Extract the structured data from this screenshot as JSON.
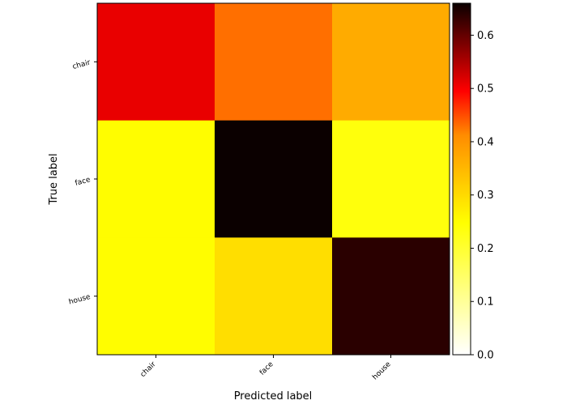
{
  "chart_data": {
    "type": "heatmap",
    "title": "",
    "xlabel": "Predicted label",
    "ylabel": "True label",
    "x_categories": [
      "chair",
      "face",
      "house"
    ],
    "y_categories": [
      "chair",
      "face",
      "house"
    ],
    "values": [
      [
        0.45,
        0.31,
        0.25
      ],
      [
        0.17,
        0.66,
        0.16
      ],
      [
        0.17,
        0.2,
        0.63
      ]
    ],
    "colorbar": {
      "min": 0.0,
      "max": 0.66,
      "ticks": [
        "0.0",
        "0.1",
        "0.2",
        "0.3",
        "0.4",
        "0.5",
        "0.6"
      ],
      "colormap": "hot_r"
    },
    "grid": false
  }
}
